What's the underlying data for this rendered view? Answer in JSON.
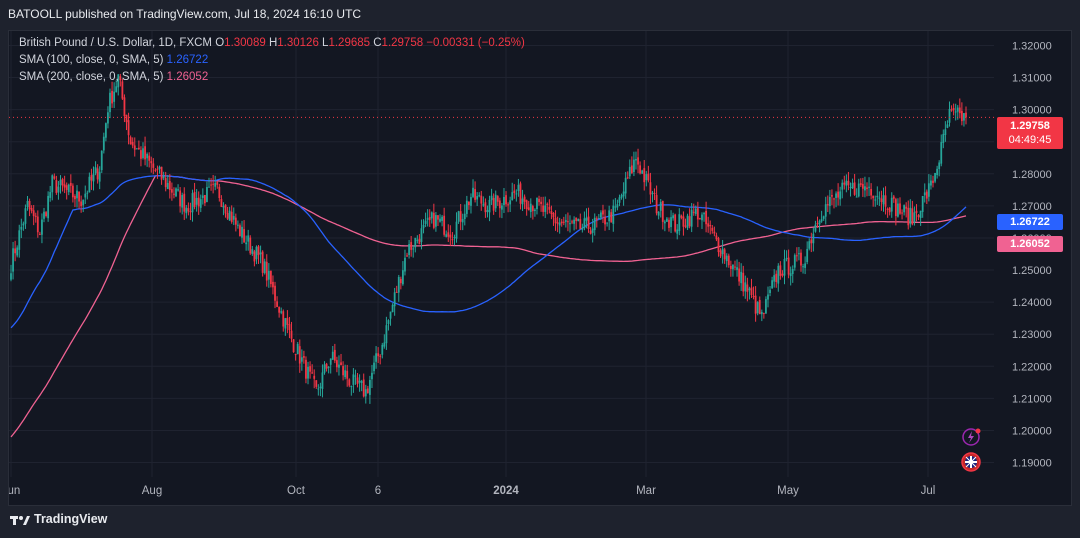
{
  "header": {
    "publisher_line": "BATOOLL published on TradingView.com, Jul 18, 2024 16:10 UTC"
  },
  "legend": {
    "symbol": "British Pound / U.S. Dollar, 1D, FXCM",
    "open_label": "O",
    "open": "1.30089",
    "high_label": "H",
    "high": "1.30126",
    "low_label": "L",
    "low": "1.29685",
    "close_label": "C",
    "close": "1.29758",
    "change": "−0.00331 (−0.25%)",
    "sma100_label": "SMA (100, close, 0, SMA, 5)",
    "sma100_value": "1.26722",
    "sma200_label": "SMA (200, close, 0, SMA, 5)",
    "sma200_value": "1.26052"
  },
  "price_badge": {
    "price": "1.29758",
    "countdown": "04:49:45"
  },
  "sma100_badge": "1.26722",
  "sma200_badge": "1.26052",
  "footer": {
    "brand": "TradingView"
  },
  "colors": {
    "up": "#26a69a",
    "down": "#f23645",
    "sma100": "#2962ff",
    "sma200": "#f06292",
    "background": "#131722",
    "grid": "#1f2330"
  },
  "chart_data": {
    "type": "candlestick",
    "title": "British Pound / U.S. Dollar, 1D, FXCM",
    "y_ticks": [
      "1.32000",
      "1.31000",
      "1.30000",
      "1.29000",
      "1.28000",
      "1.27000",
      "1.26000",
      "1.25000",
      "1.24000",
      "1.23000",
      "1.22000",
      "1.21000",
      "1.20000",
      "1.19000"
    ],
    "x_ticks": [
      "Jun",
      "Aug",
      "Oct",
      "6",
      "2024",
      "Mar",
      "May",
      "Jul"
    ],
    "ylim": [
      1.1855,
      1.3245
    ],
    "last_close": 1.29758,
    "key_points": [
      {
        "month": "Jun 2023",
        "close": 1.26
      },
      {
        "month": "Jul 2023 high",
        "close": 1.312
      },
      {
        "month": "Oct 2023 low",
        "close": 1.205
      },
      {
        "month": "Dec 2023",
        "close": 1.278
      },
      {
        "month": "Mar 2024",
        "close": 1.288
      },
      {
        "month": "Apr 2024 low",
        "close": 1.23
      },
      {
        "month": "Jun 2024",
        "close": 1.265
      },
      {
        "month": "Jul 2024",
        "close": 1.29758
      }
    ],
    "series": [
      {
        "name": "SMA (100, close, 0, SMA, 5)",
        "last": 1.26722
      },
      {
        "name": "SMA (200, close, 0, SMA, 5)",
        "last": 1.26052
      }
    ]
  }
}
